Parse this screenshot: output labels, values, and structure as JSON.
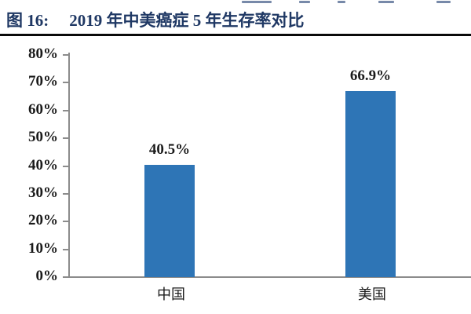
{
  "page": {
    "background": "#ffffff"
  },
  "header": {
    "figure_label": "图 16:",
    "figure_title": "2019 年中美癌症 5 年生存率对比",
    "title_color": "#1f3864",
    "rule_color": "#0a0a0a"
  },
  "chart_data": {
    "type": "bar",
    "title": "2019 年中美癌症 5 年生存率对比",
    "categories": [
      "中国",
      "美国"
    ],
    "values": [
      40.5,
      66.9
    ],
    "value_labels": [
      "40.5%",
      "66.9%"
    ],
    "xlabel": "",
    "ylabel": "",
    "ylim": [
      0,
      80
    ],
    "ytick_step": 10,
    "yticks": [
      "0%",
      "10%",
      "20%",
      "30%",
      "40%",
      "50%",
      "60%",
      "70%",
      "80%"
    ],
    "grid": "off",
    "legend": "none",
    "bar_color": "#2e75b6",
    "axis_color": "#8c8c8c",
    "label_color": "#1a1a1a"
  }
}
